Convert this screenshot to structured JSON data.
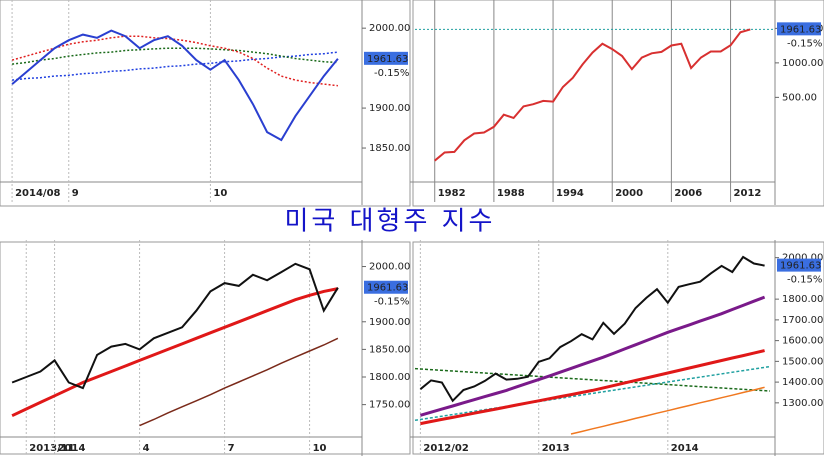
{
  "title": "미국 대형주 지수",
  "chart_data": [
    {
      "type": "line",
      "categories": [
        "2014/08",
        null,
        null,
        null,
        "9",
        null,
        null,
        null,
        null,
        null,
        null,
        null,
        null,
        null,
        "10",
        null,
        null,
        null,
        null,
        null,
        null,
        null,
        null,
        null
      ],
      "series": [
        {
          "color": "#2a3fd0",
          "values": [
            1930,
            1945,
            1960,
            1975,
            1985,
            1992,
            1988,
            1997,
            1990,
            1975,
            1985,
            1990,
            1978,
            1960,
            1948,
            1960,
            1935,
            1905,
            1870,
            1860,
            1890,
            1915,
            1940,
            1961.63
          ]
        },
        {
          "color": "#e02020",
          "dashed": true,
          "values": [
            1960,
            1965,
            1970,
            1975,
            1980,
            1983,
            1985,
            1988,
            1990,
            1990,
            1988,
            1987,
            1985,
            1982,
            1978,
            1975,
            1970,
            1962,
            1950,
            1940,
            1935,
            1932,
            1930,
            1928
          ]
        },
        {
          "color": "#1a6a1a",
          "dashed": true,
          "values": [
            1955,
            1957,
            1960,
            1962,
            1965,
            1967,
            1969,
            1970,
            1972,
            1973,
            1974,
            1975,
            1975,
            1975,
            1974,
            1973,
            1972,
            1970,
            1968,
            1965,
            1962,
            1960,
            1958,
            1957
          ]
        },
        {
          "color": "#2040e0",
          "dashed": true,
          "values": [
            1935,
            1937,
            1938,
            1940,
            1941,
            1943,
            1944,
            1946,
            1947,
            1949,
            1950,
            1952,
            1953,
            1955,
            1956,
            1958,
            1959,
            1961,
            1962,
            1964,
            1965,
            1967,
            1968,
            1970
          ]
        }
      ],
      "ylim": [
        1810,
        2029
      ],
      "yticks": [
        {
          "value": 1850,
          "label": "1850.00"
        },
        {
          "value": 1900,
          "label": "1900.00"
        },
        {
          "value": 2000,
          "label": "2000.00"
        }
      ],
      "last_label": "1961.63",
      "change_label": "-0.15%"
    },
    {
      "type": "line",
      "x": [
        1982,
        1983,
        1984,
        1985,
        1986,
        1987,
        1988,
        1989,
        1990,
        1991,
        1992,
        1993,
        1994,
        1995,
        1996,
        1997,
        1998,
        1999,
        2000,
        2001,
        2002,
        2003,
        2004,
        2005,
        2006,
        2007,
        2008,
        2009,
        2010,
        2011,
        2012,
        2013,
        2014
      ],
      "series": [
        {
          "color": "#d83030",
          "values": [
            140,
            165,
            167,
            211,
            242,
            247,
            277,
            353,
            330,
            417,
            436,
            466,
            459,
            616,
            741,
            970,
            1229,
            1469,
            1320,
            1148,
            880,
            1112,
            1212,
            1248,
            1418,
            1468,
            903,
            1115,
            1258,
            1258,
            1426,
            1848,
            1961.63
          ]
        }
      ],
      "xlim": [
        1980,
        2016
      ],
      "xticks": [
        1982,
        1988,
        1994,
        2000,
        2006,
        2012
      ],
      "ylim": [
        95,
        3200
      ],
      "ylog": true,
      "price_line": true,
      "yticks": [
        {
          "value": 500,
          "label": "500.00"
        },
        {
          "value": 1000,
          "label": "1000.00"
        },
        {
          "value": 2000,
          "label": "2000.00"
        }
      ],
      "last_label": "1961.63",
      "change_label": "-0.15%"
    },
    {
      "type": "line",
      "categories": [
        null,
        "2013/11",
        null,
        "2014",
        null,
        null,
        null,
        null,
        null,
        "4",
        null,
        null,
        null,
        null,
        null,
        "7",
        null,
        null,
        null,
        null,
        null,
        "10",
        null,
        null
      ],
      "series": [
        {
          "color": "#111111",
          "values": [
            1790,
            1800,
            1810,
            1830,
            1790,
            1780,
            1840,
            1855,
            1860,
            1850,
            1870,
            1880,
            1890,
            1920,
            1955,
            1970,
            1965,
            1985,
            1975,
            1990,
            2005,
            1995,
            1920,
            1961.63
          ]
        },
        {
          "color": "#e01818",
          "width": 3,
          "values": [
            1730,
            1742,
            1754,
            1766,
            1778,
            1790,
            1800,
            1810,
            1820,
            1830,
            1840,
            1850,
            1860,
            1870,
            1880,
            1890,
            1900,
            1910,
            1920,
            1930,
            1940,
            1948,
            1955,
            1960
          ]
        },
        {
          "color": "#7a2a1a",
          "values": [
            null,
            null,
            null,
            null,
            null,
            null,
            null,
            null,
            null,
            1712,
            1723,
            1735,
            1746,
            1757,
            1768,
            1780,
            1791,
            1802,
            1813,
            1825,
            1836,
            1847,
            1858,
            1870
          ]
        }
      ],
      "ylim": [
        1695,
        2039
      ],
      "yticks": [
        {
          "value": 1750,
          "label": "1750.00"
        },
        {
          "value": 1800,
          "label": "1800.00"
        },
        {
          "value": 1850,
          "label": "1850.00"
        },
        {
          "value": 1900,
          "label": "1900.00"
        },
        {
          "value": 2000,
          "label": "2000.00"
        }
      ],
      "last_label": "1961.63",
      "change_label": "-0.15%"
    },
    {
      "type": "line",
      "categories": [
        "2012/02",
        null,
        null,
        null,
        null,
        null,
        null,
        null,
        null,
        null,
        null,
        "2013",
        null,
        null,
        null,
        null,
        null,
        null,
        null,
        null,
        null,
        null,
        null,
        "2014",
        null,
        null,
        null,
        null,
        null,
        null,
        null,
        null,
        null
      ],
      "series": [
        {
          "color": "#111111",
          "values": [
            1366,
            1408,
            1398,
            1310,
            1362,
            1379,
            1406,
            1441,
            1412,
            1416,
            1426,
            1498,
            1515,
            1569,
            1597,
            1631,
            1606,
            1686,
            1633,
            1682,
            1757,
            1806,
            1848,
            1783,
            1859,
            1872,
            1884,
            1924,
            1960,
            1931,
            2003,
            1972,
            1961.63
          ]
        },
        {
          "color": "#7a1a8a",
          "width": 3,
          "values": [
            1240,
            1255,
            1270,
            1285,
            1300,
            1315,
            1330,
            1345,
            1360,
            1378,
            1395,
            1412,
            1430,
            1448,
            1466,
            1484,
            1502,
            1520,
            1540,
            1560,
            1580,
            1600,
            1620,
            1640,
            1658,
            1676,
            1694,
            1712,
            1730,
            1750,
            1770,
            1790,
            1810
          ]
        },
        {
          "color": "#e01818",
          "width": 3,
          "values": [
            1200,
            1210,
            1220,
            1230,
            1240,
            1250,
            1260,
            1270,
            1280,
            1290,
            1300,
            1310,
            1320,
            1330,
            1340,
            1350,
            1360,
            1372,
            1384,
            1396,
            1408,
            1420,
            1432,
            1444,
            1456,
            1468,
            1480,
            1492,
            1504,
            1516,
            1528,
            1540,
            1552
          ]
        },
        {
          "color": "#f07820",
          "values": [
            null,
            null,
            null,
            null,
            null,
            null,
            null,
            null,
            null,
            null,
            null,
            null,
            null,
            null,
            1150,
            1162,
            1175,
            1187,
            1200,
            1212,
            1225,
            1237,
            1250,
            1262,
            1275,
            1287,
            1300,
            1312,
            1325,
            1337,
            1350,
            1362,
            1375
          ]
        }
      ],
      "trendlines": [
        {
          "color": "#1a6a1a",
          "values": [
            1465,
            1357
          ]
        },
        {
          "color": "#20a0a0",
          "values": [
            1216,
            1475
          ]
        }
      ],
      "ylim": [
        1145,
        2061
      ],
      "yticks": [
        {
          "value": 1300,
          "label": "1300.00"
        },
        {
          "value": 1400,
          "label": "1400.00"
        },
        {
          "value": 1500,
          "label": "1500.00"
        },
        {
          "value": 1600,
          "label": "1600.00"
        },
        {
          "value": 1700,
          "label": "1700.00"
        },
        {
          "value": 1800,
          "label": "1800.00"
        },
        {
          "value": 2000,
          "label": "2000.00"
        }
      ],
      "last_label": "1961.63",
      "change_label": "-0.15%"
    }
  ]
}
